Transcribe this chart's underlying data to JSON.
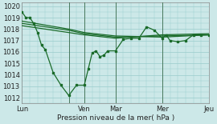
{
  "title": "",
  "xlabel": "Pression niveau de la mer( hPa )",
  "ylabel": "",
  "ylim": [
    1011.5,
    1020.3
  ],
  "xlim": [
    0,
    24
  ],
  "yticks": [
    1012,
    1013,
    1014,
    1015,
    1016,
    1017,
    1018,
    1019,
    1020
  ],
  "xtick_positions": [
    0,
    6,
    8,
    12,
    18,
    24
  ],
  "xticklabels": [
    "Lun",
    "",
    "Ven",
    "Mar",
    "Mer",
    "Jeu"
  ],
  "vlines": [
    6,
    8,
    12,
    18,
    24
  ],
  "bg_color": "#cce8e8",
  "grid_color": "#99cccc",
  "line_color": "#1a6b2a",
  "line1_x": [
    0,
    0.5,
    1,
    1.5,
    2,
    2.5,
    3,
    4,
    5,
    6,
    7,
    8,
    8.5,
    9,
    9.5,
    10,
    10.5,
    11,
    12,
    13,
    14,
    15,
    16,
    17,
    18,
    18.5,
    19,
    20,
    21,
    22,
    23,
    24
  ],
  "line1_y": [
    1019.5,
    1019.0,
    1019.0,
    1018.5,
    1017.7,
    1016.6,
    1016.2,
    1014.2,
    1013.1,
    1012.2,
    1013.1,
    1013.1,
    1014.5,
    1015.9,
    1016.1,
    1015.6,
    1015.7,
    1016.1,
    1016.1,
    1017.1,
    1017.2,
    1017.2,
    1018.2,
    1017.9,
    1017.2,
    1017.5,
    1017.0,
    1016.9,
    1017.0,
    1017.5,
    1017.5,
    1017.5
  ],
  "line2_x": [
    0,
    6,
    8,
    12,
    18,
    24
  ],
  "line2_y": [
    1018.7,
    1018.0,
    1017.7,
    1017.4,
    1017.3,
    1017.5
  ],
  "line3_x": [
    0,
    6,
    8,
    12,
    18,
    24
  ],
  "line3_y": [
    1018.5,
    1017.9,
    1017.6,
    1017.3,
    1017.4,
    1017.5
  ],
  "line4_x": [
    0,
    6,
    8,
    12,
    18,
    24
  ],
  "line4_y": [
    1018.3,
    1017.7,
    1017.5,
    1017.2,
    1017.5,
    1017.6
  ]
}
